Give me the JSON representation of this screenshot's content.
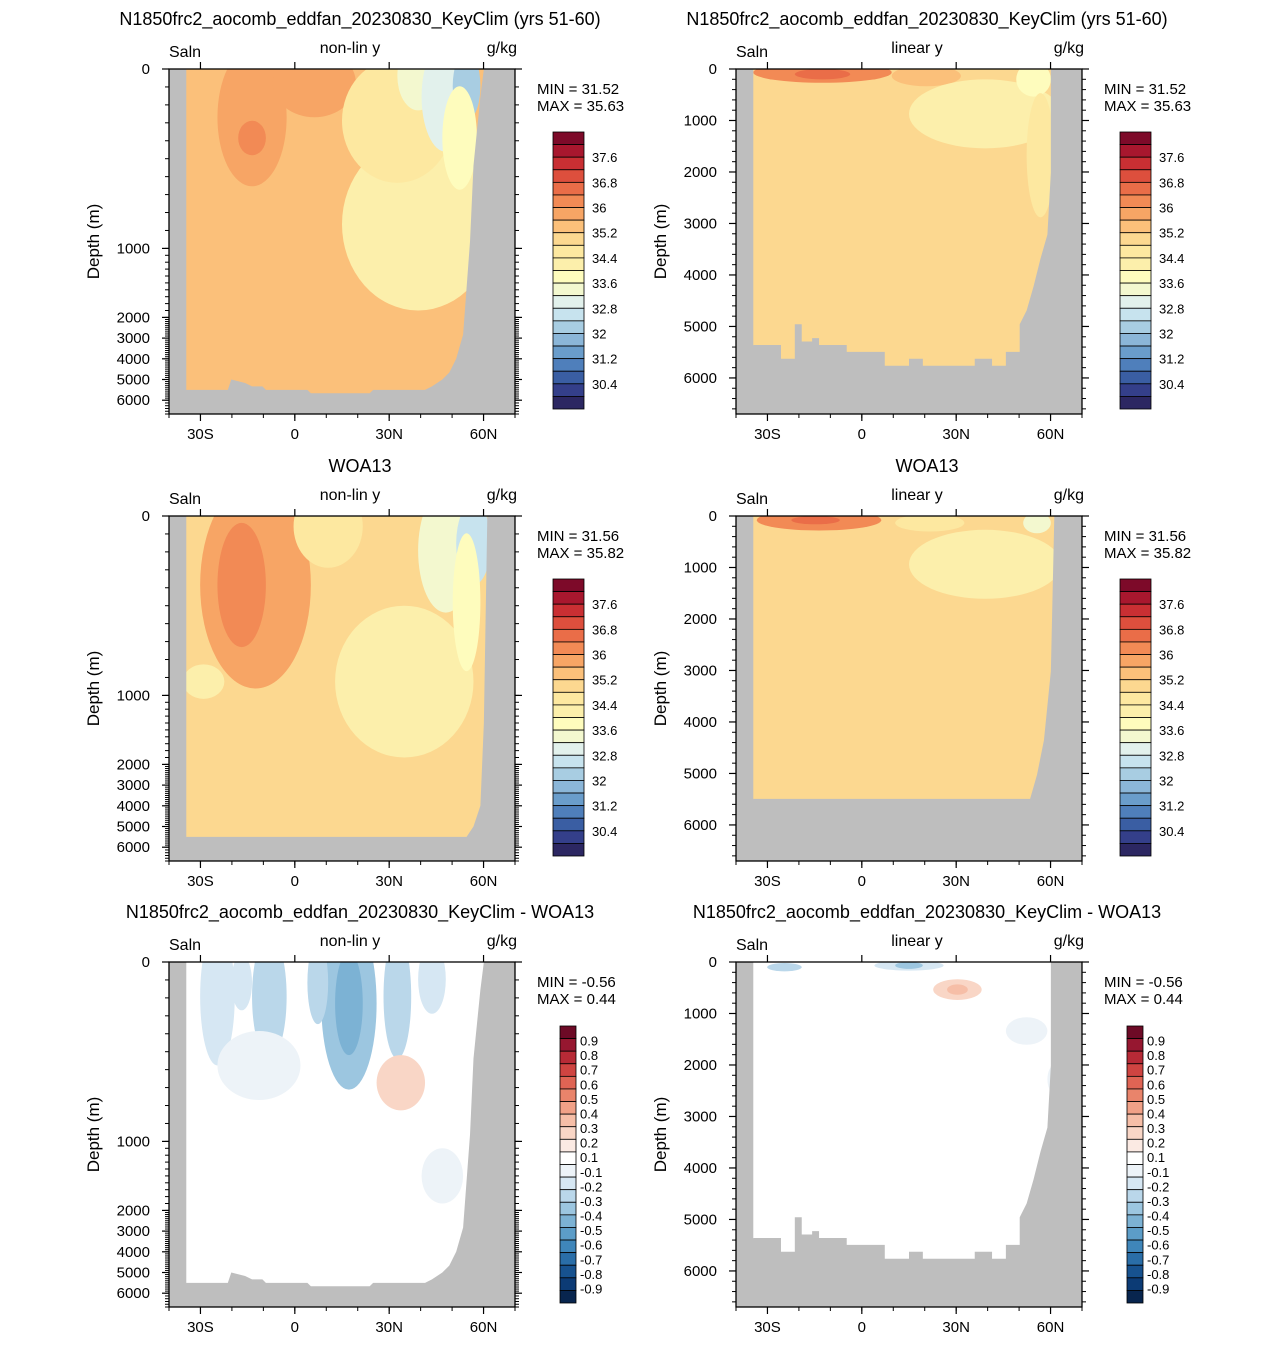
{
  "colors": {
    "land": "#bebebe",
    "salinity_levels": [
      "#2c2762",
      "#343f8a",
      "#3a5ea3",
      "#4f7fbb",
      "#6a9dcb",
      "#8bb6d8",
      "#a8cde2",
      "#c7e3ee",
      "#e2f1ec",
      "#f3f8cf",
      "#fefcbd",
      "#fcefab",
      "#fde8a0",
      "#fcd890",
      "#fbc07a",
      "#f7a565",
      "#f28a55",
      "#ea6d48",
      "#dd4f3d",
      "#c92f33",
      "#a8172e",
      "#7d0a29"
    ],
    "diff_levels": [
      "#08254e",
      "#0c3b75",
      "#17528f",
      "#2a6ea8",
      "#3f86ba",
      "#5c9dc8",
      "#7cb2d4",
      "#9cc6e0",
      "#bad7ea",
      "#d6e7f3",
      "#edf3f8",
      "#ffffff",
      "#fbeae3",
      "#f9d6c6",
      "#f6bea7",
      "#f1a187",
      "#e9846b",
      "#df6454",
      "#cf4441",
      "#b72a36",
      "#961730",
      "#6d0a26"
    ]
  },
  "chart_data": [
    {
      "type": "heatmap",
      "title": "N1850frc2_aocomb_eddfan_20230830_KeyClim (yrs 51-60)",
      "left_label": "Saln",
      "center_label": "non-lin y",
      "right_label": "g/kg",
      "ylabel": "Depth (m)",
      "x_ticks": [
        "30S",
        "0",
        "30N",
        "60N"
      ],
      "x_tick_values": [
        -30,
        0,
        30,
        60
      ],
      "xlim": [
        -40,
        70
      ],
      "y_ticks": [
        "0",
        "1000",
        "2000",
        "3000",
        "4000",
        "5000",
        "6000"
      ],
      "y_tick_values": [
        0,
        1000,
        2000,
        3000,
        4000,
        5000,
        6000
      ],
      "y_scale": "non-linear",
      "ylim": [
        6500,
        0
      ],
      "stats": [
        "MIN =  31.52",
        "MAX =  35.63"
      ],
      "colorbar_labels": [
        "37.6",
        "36.8",
        "36",
        "35.2",
        "34.4",
        "33.6",
        "32.8",
        "32",
        "31.2",
        "30.4"
      ],
      "colorbar_levels": [
        30.0,
        30.4,
        30.8,
        31.2,
        31.6,
        32.0,
        32.4,
        32.8,
        33.2,
        33.6,
        34.0,
        34.4,
        34.8,
        35.2,
        35.6,
        36.0,
        36.4,
        36.8,
        37.2,
        37.6,
        38.0
      ]
    },
    {
      "type": "heatmap",
      "title": "N1850frc2_aocomb_eddfan_20230830_KeyClim (yrs 51-60)",
      "left_label": "Saln",
      "center_label": "linear y",
      "right_label": "g/kg",
      "ylabel": "Depth (m)",
      "x_ticks": [
        "30S",
        "0",
        "30N",
        "60N"
      ],
      "x_tick_values": [
        -30,
        0,
        30,
        60
      ],
      "xlim": [
        -40,
        70
      ],
      "y_ticks": [
        "0",
        "1000",
        "2000",
        "3000",
        "4000",
        "5000",
        "6000"
      ],
      "y_tick_values": [
        0,
        1000,
        2000,
        3000,
        4000,
        5000,
        6000
      ],
      "y_scale": "linear",
      "ylim": [
        6700,
        0
      ],
      "stats": [
        "MIN =  31.52",
        "MAX =  35.63"
      ],
      "colorbar_labels": [
        "37.6",
        "36.8",
        "36",
        "35.2",
        "34.4",
        "33.6",
        "32.8",
        "32",
        "31.2",
        "30.4"
      ],
      "colorbar_levels": [
        30.0,
        30.4,
        30.8,
        31.2,
        31.6,
        32.0,
        32.4,
        32.8,
        33.2,
        33.6,
        34.0,
        34.4,
        34.8,
        35.2,
        35.6,
        36.0,
        36.4,
        36.8,
        37.2,
        37.6,
        38.0
      ]
    },
    {
      "type": "heatmap",
      "title": "WOA13",
      "left_label": "Saln",
      "center_label": "non-lin y",
      "right_label": "g/kg",
      "ylabel": "Depth (m)",
      "x_ticks": [
        "30S",
        "0",
        "30N",
        "60N"
      ],
      "x_tick_values": [
        -30,
        0,
        30,
        60
      ],
      "xlim": [
        -40,
        70
      ],
      "y_ticks": [
        "0",
        "1000",
        "2000",
        "3000",
        "4000",
        "5000",
        "6000"
      ],
      "y_tick_values": [
        0,
        1000,
        2000,
        3000,
        4000,
        5000,
        6000
      ],
      "y_scale": "non-linear",
      "ylim": [
        6500,
        0
      ],
      "stats": [
        "MIN =  31.56",
        "MAX =  35.82"
      ],
      "colorbar_labels": [
        "37.6",
        "36.8",
        "36",
        "35.2",
        "34.4",
        "33.6",
        "32.8",
        "32",
        "31.2",
        "30.4"
      ],
      "colorbar_levels": [
        30.0,
        30.4,
        30.8,
        31.2,
        31.6,
        32.0,
        32.4,
        32.8,
        33.2,
        33.6,
        34.0,
        34.4,
        34.8,
        35.2,
        35.6,
        36.0,
        36.4,
        36.8,
        37.2,
        37.6,
        38.0
      ]
    },
    {
      "type": "heatmap",
      "title": "WOA13",
      "left_label": "Saln",
      "center_label": "linear y",
      "right_label": "g/kg",
      "ylabel": "Depth (m)",
      "x_ticks": [
        "30S",
        "0",
        "30N",
        "60N"
      ],
      "x_tick_values": [
        -30,
        0,
        30,
        60
      ],
      "xlim": [
        -40,
        70
      ],
      "y_ticks": [
        "0",
        "1000",
        "2000",
        "3000",
        "4000",
        "5000",
        "6000"
      ],
      "y_tick_values": [
        0,
        1000,
        2000,
        3000,
        4000,
        5000,
        6000
      ],
      "y_scale": "linear",
      "ylim": [
        6700,
        0
      ],
      "stats": [
        "MIN =  31.56",
        "MAX =  35.82"
      ],
      "colorbar_labels": [
        "37.6",
        "36.8",
        "36",
        "35.2",
        "34.4",
        "33.6",
        "32.8",
        "32",
        "31.2",
        "30.4"
      ],
      "colorbar_levels": [
        30.0,
        30.4,
        30.8,
        31.2,
        31.6,
        32.0,
        32.4,
        32.8,
        33.2,
        33.6,
        34.0,
        34.4,
        34.8,
        35.2,
        35.6,
        36.0,
        36.4,
        36.8,
        37.2,
        37.6,
        38.0
      ]
    },
    {
      "type": "heatmap",
      "title": "N1850frc2_aocomb_eddfan_20230830_KeyClim - WOA13",
      "left_label": "Saln",
      "center_label": "non-lin y",
      "right_label": "g/kg",
      "ylabel": "Depth (m)",
      "x_ticks": [
        "30S",
        "0",
        "30N",
        "60N"
      ],
      "x_tick_values": [
        -30,
        0,
        30,
        60
      ],
      "xlim": [
        -40,
        70
      ],
      "y_ticks": [
        "0",
        "1000",
        "2000",
        "3000",
        "4000",
        "5000",
        "6000"
      ],
      "y_tick_values": [
        0,
        1000,
        2000,
        3000,
        4000,
        5000,
        6000
      ],
      "y_scale": "non-linear",
      "ylim": [
        6500,
        0
      ],
      "stats": [
        "MIN =  -0.56",
        "MAX =   0.44"
      ],
      "colorbar_labels": [
        "0.9",
        "0.8",
        "0.7",
        "0.6",
        "0.5",
        "0.4",
        "0.3",
        "0.2",
        "0.1",
        "-0.1",
        "-0.2",
        "-0.3",
        "-0.4",
        "-0.5",
        "-0.6",
        "-0.7",
        "-0.8",
        "-0.9"
      ],
      "colorbar_levels": [
        -0.9,
        -0.8,
        -0.7,
        -0.6,
        -0.5,
        -0.4,
        -0.3,
        -0.2,
        -0.1,
        0.1,
        0.2,
        0.3,
        0.4,
        0.5,
        0.6,
        0.7,
        0.8,
        0.9
      ]
    },
    {
      "type": "heatmap",
      "title": "N1850frc2_aocomb_eddfan_20230830_KeyClim - WOA13",
      "left_label": "Saln",
      "center_label": "linear y",
      "right_label": "g/kg",
      "ylabel": "Depth (m)",
      "x_ticks": [
        "30S",
        "0",
        "30N",
        "60N"
      ],
      "x_tick_values": [
        -30,
        0,
        30,
        60
      ],
      "xlim": [
        -40,
        70
      ],
      "y_ticks": [
        "0",
        "1000",
        "2000",
        "3000",
        "4000",
        "5000",
        "6000"
      ],
      "y_tick_values": [
        0,
        1000,
        2000,
        3000,
        4000,
        5000,
        6000
      ],
      "y_scale": "linear",
      "ylim": [
        6700,
        0
      ],
      "stats": [
        "MIN =  -0.56",
        "MAX =   0.44"
      ],
      "colorbar_labels": [
        "0.9",
        "0.8",
        "0.7",
        "0.6",
        "0.5",
        "0.4",
        "0.3",
        "0.2",
        "0.1",
        "-0.1",
        "-0.2",
        "-0.3",
        "-0.4",
        "-0.5",
        "-0.6",
        "-0.7",
        "-0.8",
        "-0.9"
      ],
      "colorbar_levels": [
        -0.9,
        -0.8,
        -0.7,
        -0.6,
        -0.5,
        -0.4,
        -0.3,
        -0.2,
        -0.1,
        0.1,
        0.2,
        0.3,
        0.4,
        0.5,
        0.6,
        0.7,
        0.8,
        0.9
      ]
    }
  ]
}
